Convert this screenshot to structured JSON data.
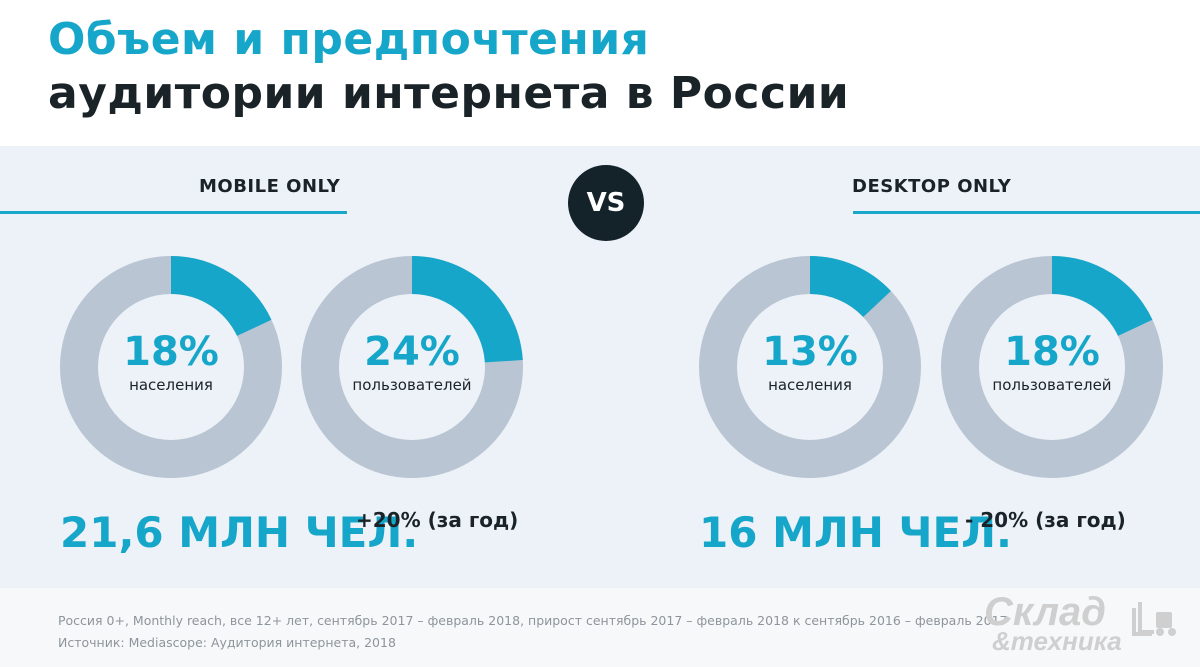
{
  "title": {
    "line1": "Объем и предпочтения",
    "line2": "аудитории интернета в России"
  },
  "vs_label": "VS",
  "colors": {
    "accent": "#16a6c9",
    "ring": "#b9c5d2",
    "dark": "#1a2328",
    "panel": "#edf2f8"
  },
  "sections": [
    {
      "label": "MOBILE ONLY",
      "total": "21,6 МЛН ЧЕЛ.",
      "change": "+20% (за год)"
    },
    {
      "label": "DESKTOP ONLY",
      "total": "16 МЛН ЧЕЛ.",
      "change": "- 20% (за год)"
    }
  ],
  "chart_data": [
    {
      "type": "pie",
      "group": "MOBILE ONLY",
      "value": 18,
      "label": "18%",
      "caption": "населения"
    },
    {
      "type": "pie",
      "group": "MOBILE ONLY",
      "value": 24,
      "label": "24%",
      "caption": "пользователей"
    },
    {
      "type": "pie",
      "group": "DESKTOP ONLY",
      "value": 13,
      "label": "13%",
      "caption": "населения"
    },
    {
      "type": "pie",
      "group": "DESKTOP ONLY",
      "value": 18,
      "label": "18%",
      "caption": "пользователей"
    }
  ],
  "footnote": {
    "line1": "Россия 0+, Monthly reach, все 12+ лет, сентябрь 2017 – февраль 2018, прирост сентябрь 2017 – февраль 2018 к сентябрь 2016 – февраль 2017",
    "line2": "Источник: Mediascope: Аудитория интернета, 2018"
  },
  "logo": {
    "word1": "Склад",
    "word2": "&техника"
  }
}
